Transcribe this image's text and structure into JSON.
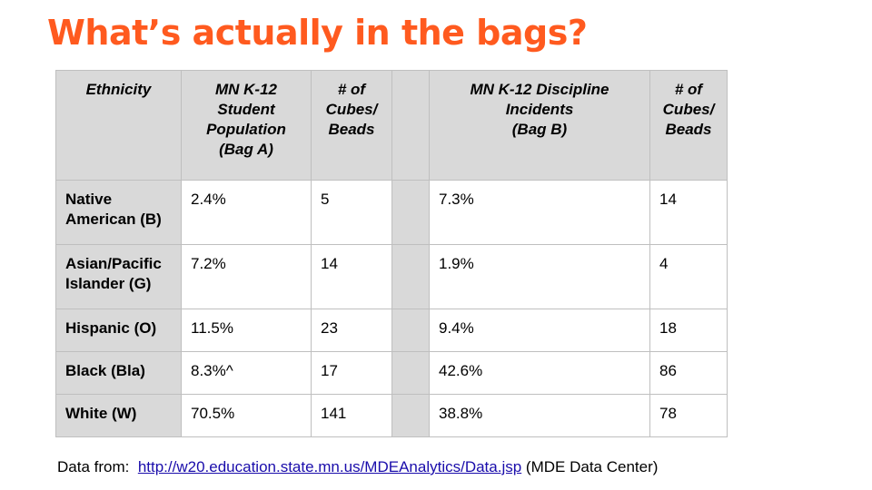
{
  "slide": {
    "title": "What’s actually in the bags?",
    "accent_color": "#ff5a1f"
  },
  "table": {
    "headers": [
      "Ethnicity",
      "MN K-12\nStudent\nPopulation\n(Bag A)",
      "# of\nCubes/\nBeads",
      "",
      "MN K-12 Discipline\nIncidents\n(Bag B)",
      "# of\nCubes/\nBeads"
    ],
    "rows": [
      [
        "Native American (B)",
        "2.4%",
        "5",
        "",
        "7.3%",
        "14"
      ],
      [
        "Asian/Pacific Islander (G)",
        "7.2%",
        "14",
        "",
        "1.9%",
        "4"
      ],
      [
        "Hispanic (O)",
        "11.5%",
        "23",
        "",
        "9.4%",
        "18"
      ],
      [
        "Black (Bla)",
        "8.3%^",
        "17",
        "",
        "42.6%",
        "86"
      ],
      [
        "White (W)",
        "70.5%",
        "141",
        "",
        "38.8%",
        "78"
      ]
    ]
  },
  "footer": {
    "prefix": "Data from:",
    "link_text": "http://w20.education.state.mn.us/MDEAnalytics/Data.jsp",
    "suffix": "(MDE Data Center)"
  }
}
